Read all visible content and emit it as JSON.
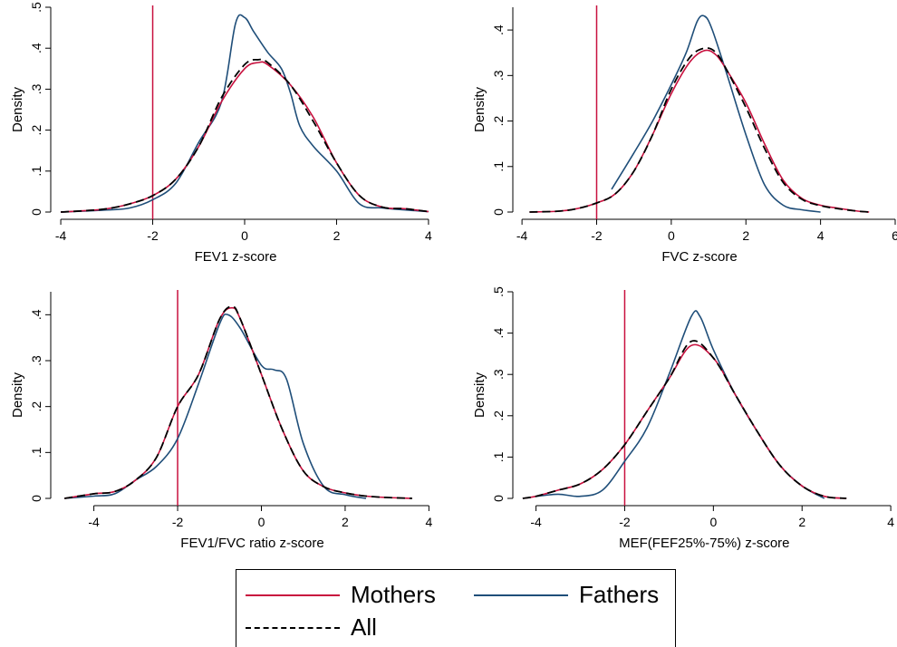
{
  "colors": {
    "mothers": "#c8103e",
    "fathers": "#1f4e79",
    "all": "#000000",
    "cutoff": "#c8103e"
  },
  "legend": {
    "placement": "bottom",
    "items": [
      {
        "key": "mothers",
        "label": "Mothers",
        "style": "solid"
      },
      {
        "key": "fathers",
        "label": "Fathers",
        "style": "solid"
      },
      {
        "key": "all",
        "label": "All",
        "style": "dashed"
      }
    ]
  },
  "chart_data": [
    {
      "type": "line",
      "title": "",
      "xlabel": "FEV1 z-score",
      "ylabel": "Density",
      "xlim": [
        -4.1,
        4.1
      ],
      "ylim": [
        0,
        0.5
      ],
      "xticks": [
        -4,
        -2,
        0,
        2,
        4
      ],
      "yticks": [
        0,
        0.1,
        0.2,
        0.3,
        0.4,
        0.5
      ],
      "ytick_labels": [
        "0",
        ".1",
        ".2",
        ".3",
        ".4",
        ".5"
      ],
      "cutoff_x": -2,
      "grid": false,
      "series": [
        {
          "key": "mothers",
          "x": [
            -4,
            -3.5,
            -3,
            -2.5,
            -2,
            -1.5,
            -1,
            -0.5,
            0,
            0.3,
            0.5,
            1,
            1.5,
            2,
            2.5,
            3,
            3.5,
            4
          ],
          "y": [
            0,
            0.003,
            0.008,
            0.02,
            0.04,
            0.08,
            0.16,
            0.27,
            0.35,
            0.365,
            0.36,
            0.31,
            0.23,
            0.12,
            0.04,
            0.012,
            0.008,
            0.001
          ]
        },
        {
          "key": "fathers",
          "x": [
            -4,
            -3,
            -2.5,
            -2,
            -1.5,
            -1,
            -0.5,
            -0.2,
            0,
            0.2,
            0.5,
            0.8,
            1,
            1.2,
            1.5,
            2,
            2.5,
            3,
            3.5,
            4
          ],
          "y": [
            0,
            0.005,
            0.01,
            0.03,
            0.07,
            0.17,
            0.27,
            0.46,
            0.475,
            0.44,
            0.39,
            0.35,
            0.29,
            0.21,
            0.16,
            0.1,
            0.02,
            0.01,
            0.005,
            0.001
          ]
        },
        {
          "key": "all",
          "x": [
            -4,
            -3.5,
            -3,
            -2.5,
            -2,
            -1.5,
            -1,
            -0.5,
            0,
            0.3,
            0.5,
            1,
            1.5,
            2,
            2.5,
            3,
            3.5,
            4
          ],
          "y": [
            0,
            0.003,
            0.008,
            0.02,
            0.04,
            0.08,
            0.16,
            0.28,
            0.36,
            0.372,
            0.365,
            0.31,
            0.22,
            0.12,
            0.04,
            0.012,
            0.008,
            0.001
          ]
        }
      ]
    },
    {
      "type": "line",
      "title": "",
      "xlabel": "FVC z-score",
      "ylabel": "Density",
      "xlim": [
        -4.1,
        6
      ],
      "ylim": [
        0,
        0.45
      ],
      "xticks": [
        -4,
        -2,
        0,
        2,
        4,
        6
      ],
      "yticks": [
        0,
        0.1,
        0.2,
        0.3,
        0.4
      ],
      "ytick_labels": [
        "0",
        ".1",
        ".2",
        ".3",
        ".4"
      ],
      "cutoff_x": -2,
      "grid": false,
      "series": [
        {
          "key": "mothers",
          "x": [
            -3.8,
            -3,
            -2.5,
            -2,
            -1.5,
            -1,
            -0.5,
            0,
            0.5,
            0.9,
            1.2,
            1.5,
            2,
            2.5,
            3,
            3.5,
            4,
            4.5,
            5,
            5.3
          ],
          "y": [
            0,
            0.002,
            0.008,
            0.02,
            0.04,
            0.09,
            0.17,
            0.26,
            0.33,
            0.355,
            0.345,
            0.31,
            0.24,
            0.15,
            0.07,
            0.03,
            0.015,
            0.008,
            0.002,
            0
          ]
        },
        {
          "key": "fathers",
          "x": [
            -1.6,
            -1,
            -0.5,
            0,
            0.4,
            0.7,
            0.9,
            1.1,
            1.5,
            2,
            2.5,
            3,
            3.5,
            4
          ],
          "y": [
            0.05,
            0.13,
            0.2,
            0.28,
            0.35,
            0.42,
            0.43,
            0.4,
            0.3,
            0.17,
            0.06,
            0.015,
            0.005,
            0
          ]
        },
        {
          "key": "all",
          "x": [
            -3.8,
            -3,
            -2.5,
            -2,
            -1.5,
            -1,
            -0.5,
            0,
            0.5,
            0.9,
            1.2,
            1.5,
            2,
            2.5,
            3,
            3.5,
            4,
            4.5,
            5,
            5.3
          ],
          "y": [
            0,
            0.002,
            0.008,
            0.02,
            0.04,
            0.09,
            0.17,
            0.27,
            0.34,
            0.36,
            0.35,
            0.31,
            0.23,
            0.14,
            0.065,
            0.028,
            0.014,
            0.007,
            0.002,
            0
          ]
        }
      ]
    },
    {
      "type": "line",
      "title": "",
      "xlabel": "FEV1/FVC ratio z-score",
      "ylabel": "Density",
      "xlim": [
        -4.9,
        4.1
      ],
      "ylim": [
        0,
        0.45
      ],
      "xticks": [
        -4,
        -2,
        0,
        2,
        4
      ],
      "yticks": [
        0,
        0.1,
        0.2,
        0.3,
        0.4
      ],
      "ytick_labels": [
        "0",
        ".1",
        ".2",
        ".3",
        ".4"
      ],
      "cutoff_x": -2,
      "grid": false,
      "series": [
        {
          "key": "mothers",
          "x": [
            -4.7,
            -4,
            -3.5,
            -3,
            -2.5,
            -2,
            -1.5,
            -1,
            -0.7,
            -0.5,
            0,
            0.5,
            1,
            1.5,
            2,
            2.5,
            3,
            3.6
          ],
          "y": [
            0,
            0.01,
            0.015,
            0.04,
            0.09,
            0.2,
            0.27,
            0.39,
            0.415,
            0.39,
            0.27,
            0.15,
            0.06,
            0.025,
            0.012,
            0.005,
            0.002,
            0
          ]
        },
        {
          "key": "fathers",
          "x": [
            -4.7,
            -4,
            -3.5,
            -3,
            -2.5,
            -2,
            -1.5,
            -1,
            -0.8,
            -0.5,
            0,
            0.3,
            0.6,
            1,
            1.5,
            2,
            2.5
          ],
          "y": [
            0,
            0.005,
            0.01,
            0.04,
            0.07,
            0.13,
            0.25,
            0.38,
            0.4,
            0.37,
            0.29,
            0.28,
            0.26,
            0.12,
            0.025,
            0.008,
            0
          ]
        },
        {
          "key": "all",
          "x": [
            -4.7,
            -4,
            -3.5,
            -3,
            -2.5,
            -2,
            -1.5,
            -1,
            -0.7,
            -0.5,
            0,
            0.5,
            1,
            1.5,
            2,
            2.5,
            3,
            3.6
          ],
          "y": [
            0,
            0.01,
            0.015,
            0.04,
            0.09,
            0.2,
            0.27,
            0.39,
            0.418,
            0.39,
            0.27,
            0.15,
            0.06,
            0.025,
            0.012,
            0.005,
            0.002,
            0
          ]
        }
      ]
    },
    {
      "type": "line",
      "title": "",
      "xlabel": "MEF(FEF25%-75%) z-score",
      "ylabel": "Density",
      "xlim": [
        -4.4,
        4.1
      ],
      "ylim": [
        0,
        0.5
      ],
      "xticks": [
        -4,
        -2,
        0,
        2,
        4
      ],
      "yticks": [
        0,
        0.1,
        0.2,
        0.3,
        0.4,
        0.5
      ],
      "ytick_labels": [
        "0",
        ".1",
        ".2",
        ".3",
        ".4",
        ".5"
      ],
      "cutoff_x": -2,
      "grid": false,
      "series": [
        {
          "key": "mothers",
          "x": [
            -4.3,
            -4,
            -3.5,
            -3,
            -2.5,
            -2,
            -1.5,
            -1,
            -0.5,
            0,
            0.5,
            1,
            1.5,
            2,
            2.5,
            3
          ],
          "y": [
            0,
            0.005,
            0.02,
            0.035,
            0.07,
            0.13,
            0.21,
            0.29,
            0.37,
            0.34,
            0.25,
            0.16,
            0.08,
            0.03,
            0.005,
            0
          ]
        },
        {
          "key": "fathers",
          "x": [
            -4,
            -3.5,
            -3,
            -2.5,
            -2,
            -1.5,
            -1,
            -0.5,
            -0.3,
            0,
            0.5,
            1,
            1.5,
            2,
            2.5
          ],
          "y": [
            0.005,
            0.01,
            0.005,
            0.02,
            0.09,
            0.17,
            0.3,
            0.44,
            0.44,
            0.36,
            0.25,
            0.16,
            0.08,
            0.03,
            0
          ]
        },
        {
          "key": "all",
          "x": [
            -4.3,
            -4,
            -3.5,
            -3,
            -2.5,
            -2,
            -1.5,
            -1,
            -0.5,
            0,
            0.5,
            1,
            1.5,
            2,
            2.5,
            3
          ],
          "y": [
            0,
            0.005,
            0.02,
            0.035,
            0.07,
            0.13,
            0.21,
            0.29,
            0.38,
            0.34,
            0.25,
            0.16,
            0.08,
            0.03,
            0.005,
            0
          ]
        }
      ]
    }
  ]
}
